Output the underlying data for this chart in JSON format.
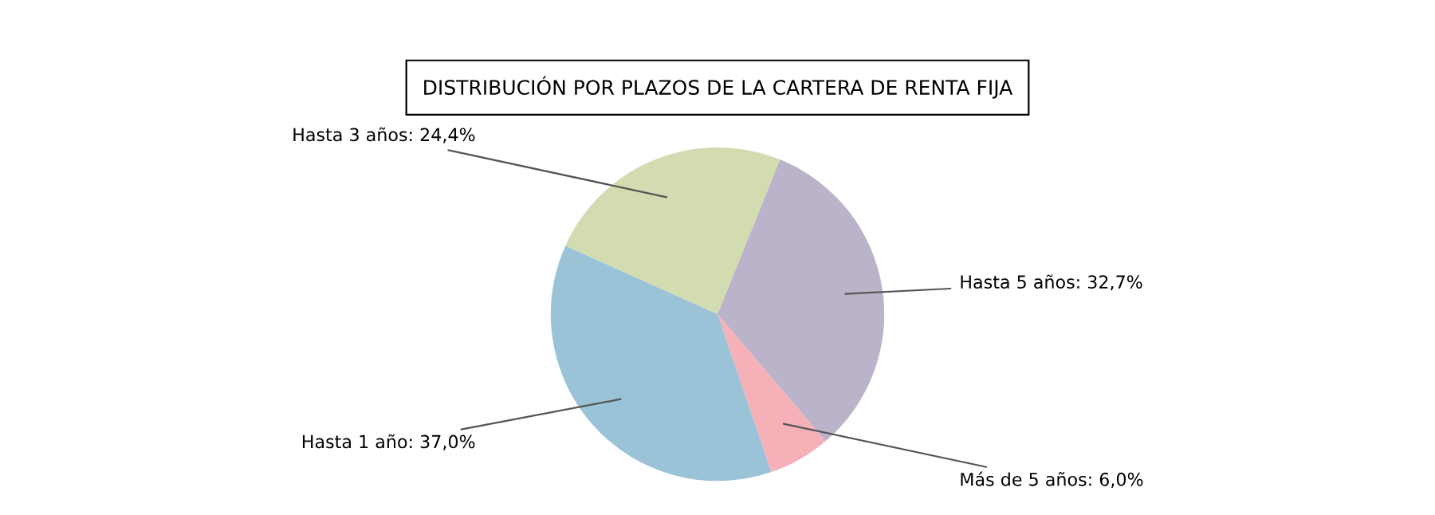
{
  "chart_data": {
    "type": "pie",
    "title": "DISTRIBUCIÓN POR PLAZOS DE LA CARTERA DE RENTA FIJA",
    "categories": [
      "Hasta 5 años",
      "Más de 5 años",
      "Hasta 1 año",
      "Hasta 3 años"
    ],
    "values": [
      32.7,
      6.0,
      37.0,
      24.4
    ],
    "value_labels": [
      "32,7%",
      "6,0%",
      "37,0%",
      "24,4%"
    ],
    "colors": [
      "#bab3c9",
      "#f5b0b8",
      "#9bc3d8",
      "#d3dbb0"
    ],
    "legend": false
  }
}
